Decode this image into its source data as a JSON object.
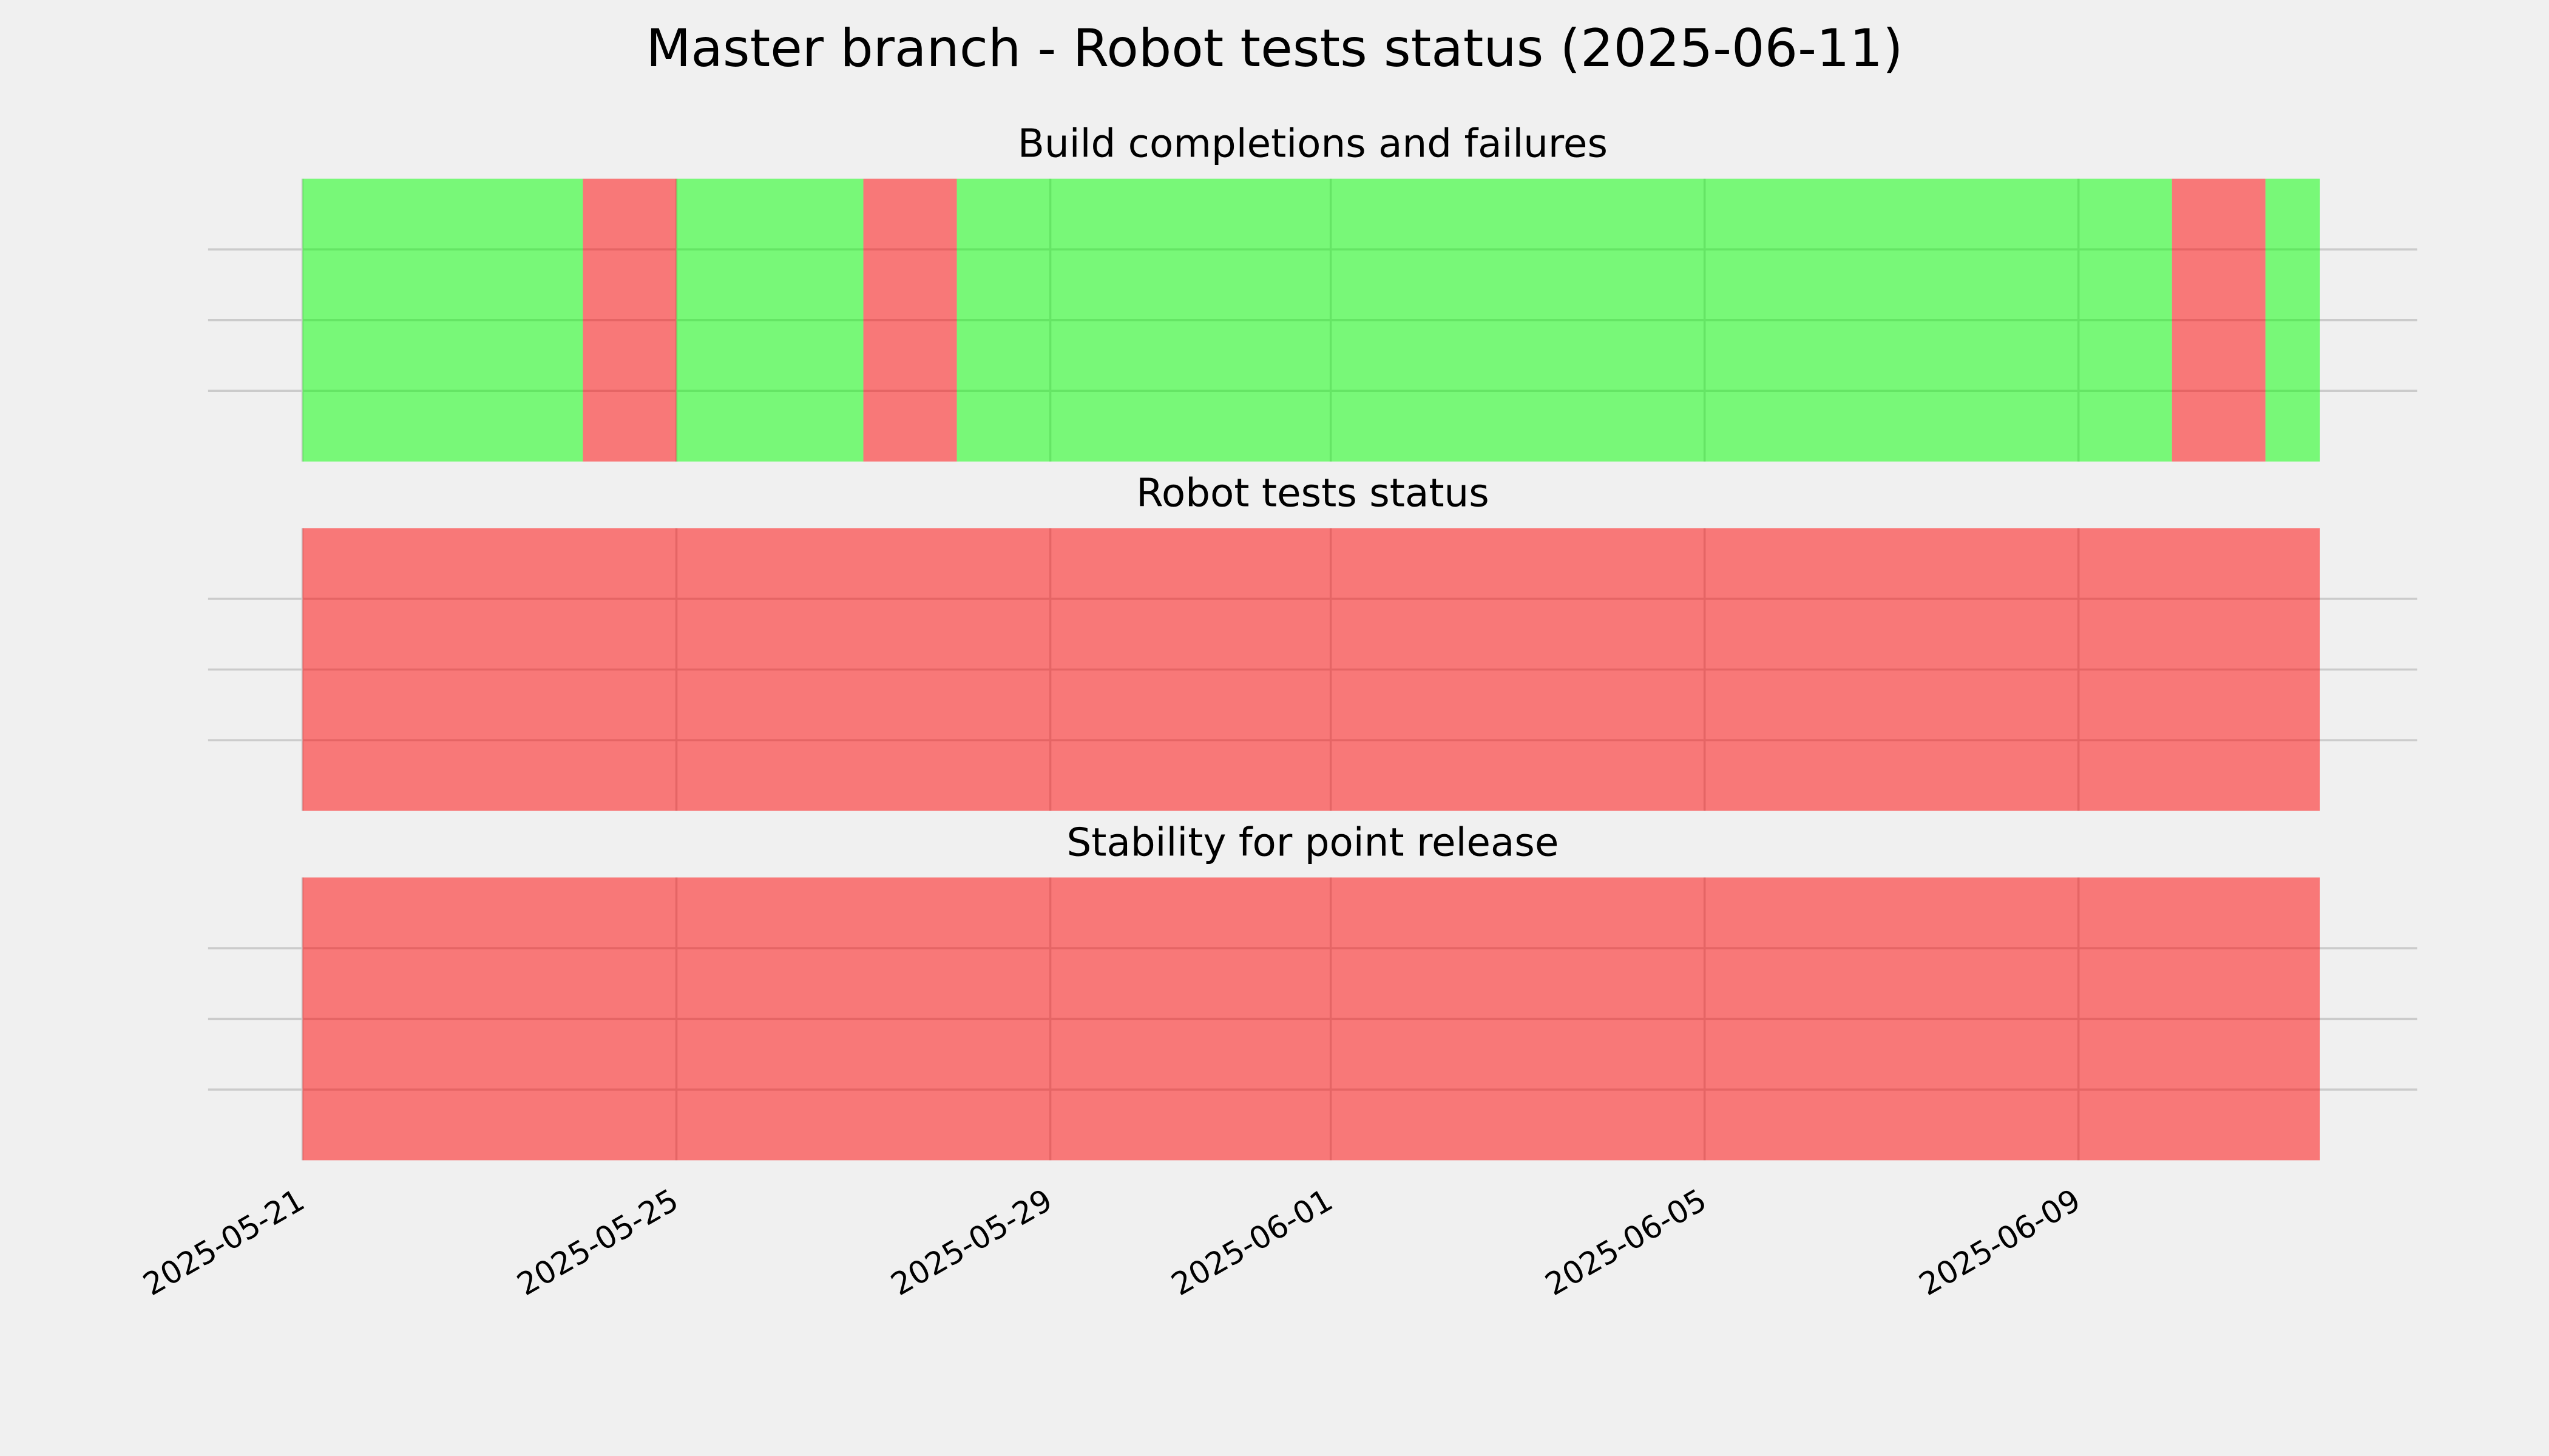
{
  "chart_data": {
    "type": "status-timeline",
    "title": "Master branch - Robot tests status (2025-06-11)",
    "xlim": [
      "2025-05-19T23:45",
      "2025-06-12T15:00"
    ],
    "xticks": [
      "2025-05-21",
      "2025-05-25",
      "2025-05-29",
      "2025-06-01",
      "2025-06-05",
      "2025-06-09"
    ],
    "ylim": [
      0,
      1
    ],
    "yticks": [
      0.25,
      0.5,
      0.75
    ],
    "grid": true,
    "alpha": 0.5,
    "panels": [
      {
        "title": "Build completions and failures",
        "segments": [
          {
            "start": "2025-05-21",
            "end": "2025-05-24",
            "color": "#00ff00"
          },
          {
            "start": "2025-05-24",
            "end": "2025-05-25",
            "color": "#ff0000"
          },
          {
            "start": "2025-05-25",
            "end": "2025-05-27",
            "color": "#00ff00"
          },
          {
            "start": "2025-05-27",
            "end": "2025-05-28",
            "color": "#ff0000"
          },
          {
            "start": "2025-05-28",
            "end": "2025-06-10",
            "color": "#00ff00"
          },
          {
            "start": "2025-06-10",
            "end": "2025-06-11",
            "color": "#ff0000"
          },
          {
            "start": "2025-06-11",
            "end": "2025-06-11T14:00",
            "color": "#00ff00"
          }
        ]
      },
      {
        "title": "Robot tests status",
        "segments": [
          {
            "start": "2025-05-21",
            "end": "2025-06-11T14:00",
            "color": "#ff0000"
          }
        ]
      },
      {
        "title": "Stability for point release",
        "segments": [
          {
            "start": "2025-05-21",
            "end": "2025-06-11T14:00",
            "color": "#ff0000"
          }
        ]
      }
    ]
  }
}
